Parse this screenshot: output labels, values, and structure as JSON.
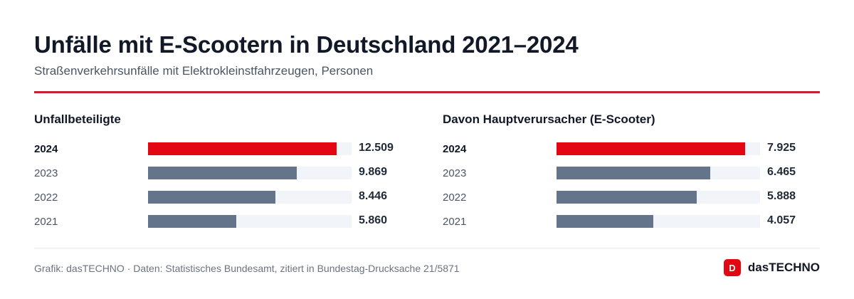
{
  "title": "Unfälle mit E-Scootern in Deutschland 2021–2024",
  "subtitle": "Straßenverkehrsunfälle mit Elektrokleinstfahrzeugen, Personen",
  "colors": {
    "highlight": "#e30613",
    "bar": "#64748b",
    "track": "#f1f4f9",
    "rule": "#c8202f"
  },
  "chart_data": [
    {
      "type": "bar",
      "orientation": "horizontal",
      "title": "Unfallbeteiligte",
      "categories": [
        "2024",
        "2023",
        "2022",
        "2021"
      ],
      "values": [
        12509,
        9869,
        8446,
        5860
      ],
      "value_labels": [
        "12.509",
        "9.869",
        "8.446",
        "5.860"
      ],
      "highlight": "2024",
      "xlim": [
        0,
        13500
      ]
    },
    {
      "type": "bar",
      "orientation": "horizontal",
      "title": "Davon Hauptverursacher (E-Scooter)",
      "categories": [
        "2024",
        "2023",
        "2022",
        "2021"
      ],
      "values": [
        7925,
        6465,
        5888,
        4057
      ],
      "value_labels": [
        "7.925",
        "6.465",
        "5.888",
        "4.057"
      ],
      "highlight": "2024",
      "xlim": [
        0,
        8550
      ]
    }
  ],
  "footer": {
    "source": "Grafik: dasTECHNO · Daten: Statistisches Bundesamt, zitiert in Bundestag-Drucksache 21/5871",
    "brand_letter": "D",
    "brand_name": "dasTECHNO"
  }
}
